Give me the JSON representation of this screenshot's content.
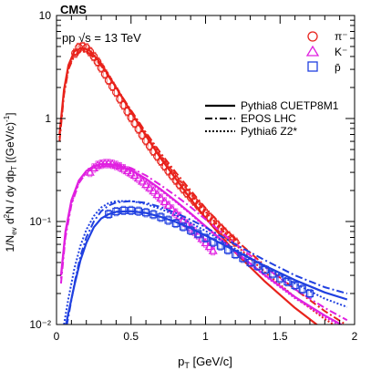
{
  "chart_data": {
    "type": "line",
    "experiment_label": "CMS",
    "energy_label": "pp √s = 13 TeV",
    "xlabel": "p_T [GeV/c]",
    "ylabel": "1/N_ev d²N / dy dp_T [(GeV/c)⁻¹]",
    "xlim": [
      0,
      2
    ],
    "ylim": [
      0.01,
      10
    ],
    "log_y": true,
    "grid": false,
    "x_ticks": [
      "0",
      "0.5",
      "1",
      "1.5",
      "2"
    ],
    "y_ticks": [
      "10⁻²",
      "10⁻¹",
      "1",
      "10"
    ],
    "legend_particles": [
      {
        "label": "π⁻",
        "marker": "circle",
        "color": "#e8221b"
      },
      {
        "label": "K⁻",
        "marker": "triangle",
        "color": "#e020e0"
      },
      {
        "label": "p̄",
        "marker": "square",
        "color": "#2040e0"
      }
    ],
    "legend_models": [
      {
        "label": "Pythia8 CUETP8M1",
        "style": "solid"
      },
      {
        "label": "EPOS LHC",
        "style": "dashdot"
      },
      {
        "label": "Pythia6 Z2*",
        "style": "dotted"
      }
    ],
    "series": [
      {
        "particle": "pion",
        "color": "#e8221b",
        "marker": "circle",
        "data": {
          "x": [
            0.125,
            0.15,
            0.175,
            0.2,
            0.225,
            0.25,
            0.275,
            0.3,
            0.325,
            0.35,
            0.375,
            0.4,
            0.425,
            0.45,
            0.475,
            0.5,
            0.525,
            0.55,
            0.575,
            0.6,
            0.625,
            0.65,
            0.675,
            0.7,
            0.725,
            0.75,
            0.775,
            0.8,
            0.825,
            0.85,
            0.875,
            0.9,
            0.925,
            0.95,
            0.975,
            1.0,
            1.025,
            1.05,
            1.075,
            1.1,
            1.125,
            1.15,
            1.175,
            1.2
          ],
          "y": [
            4.3,
            4.9,
            5.0,
            4.85,
            4.45,
            4.0,
            3.55,
            3.1,
            2.7,
            2.35,
            2.05,
            1.8,
            1.55,
            1.35,
            1.17,
            1.02,
            0.9,
            0.79,
            0.69,
            0.61,
            0.54,
            0.48,
            0.43,
            0.385,
            0.345,
            0.31,
            0.28,
            0.252,
            0.228,
            0.207,
            0.188,
            0.172,
            0.157,
            0.143,
            0.131,
            0.12,
            0.11,
            0.101,
            0.093,
            0.086,
            0.079,
            0.073,
            0.068,
            0.063
          ]
        },
        "models": {
          "pythia8": {
            "x": [
              0.02,
              0.05,
              0.08,
              0.12,
              0.17,
              0.22,
              0.3,
              0.4,
              0.5,
              0.6,
              0.7,
              0.8,
              0.9,
              1.0,
              1.2,
              1.4,
              1.6,
              1.8,
              1.95
            ],
            "y": [
              0.7,
              1.9,
              3.3,
              4.5,
              4.85,
              4.6,
              3.4,
              2.0,
              1.15,
              0.68,
              0.41,
              0.26,
              0.165,
              0.108,
              0.05,
              0.026,
              0.0145,
              0.0087,
              0.0062
            ]
          },
          "epos": {
            "x": [
              0.02,
              0.05,
              0.08,
              0.12,
              0.17,
              0.22,
              0.3,
              0.4,
              0.5,
              0.6,
              0.7,
              0.8,
              0.9,
              1.0,
              1.2,
              1.4,
              1.6,
              1.8,
              1.95
            ],
            "y": [
              0.6,
              1.7,
              3.0,
              4.1,
              4.5,
              4.3,
              3.25,
              2.0,
              1.2,
              0.73,
              0.46,
              0.3,
              0.2,
              0.135,
              0.067,
              0.037,
              0.022,
              0.0135,
              0.0098
            ]
          },
          "pythia6": {
            "x": [
              0.02,
              0.05,
              0.08,
              0.12,
              0.17,
              0.22,
              0.3,
              0.4,
              0.5,
              0.6,
              0.7,
              0.8,
              0.9,
              1.0,
              1.2,
              1.4,
              1.6,
              1.8,
              1.95
            ],
            "y": [
              0.65,
              1.8,
              3.1,
              4.2,
              4.55,
              4.35,
              3.3,
              2.0,
              1.18,
              0.71,
              0.44,
              0.28,
              0.185,
              0.124,
              0.06,
              0.032,
              0.0185,
              0.0113,
              0.0082
            ]
          }
        }
      },
      {
        "particle": "kaon",
        "color": "#e020e0",
        "marker": "triangle",
        "data": {
          "x": [
            0.225,
            0.25,
            0.275,
            0.3,
            0.325,
            0.35,
            0.375,
            0.4,
            0.425,
            0.45,
            0.475,
            0.5,
            0.525,
            0.55,
            0.575,
            0.6,
            0.625,
            0.65,
            0.675,
            0.7,
            0.725,
            0.75,
            0.775,
            0.8,
            0.825,
            0.85,
            0.875,
            0.9,
            0.925,
            0.95,
            0.975,
            1.0,
            1.025,
            1.05
          ],
          "y": [
            0.3,
            0.33,
            0.35,
            0.36,
            0.365,
            0.365,
            0.36,
            0.35,
            0.34,
            0.325,
            0.31,
            0.295,
            0.28,
            0.262,
            0.245,
            0.228,
            0.212,
            0.197,
            0.182,
            0.168,
            0.155,
            0.143,
            0.132,
            0.121,
            0.112,
            0.103,
            0.095,
            0.087,
            0.08,
            0.074,
            0.068,
            0.062,
            0.057,
            0.052
          ]
        },
        "models": {
          "pythia8": {
            "x": [
              0.03,
              0.06,
              0.1,
              0.15,
              0.2,
              0.25,
              0.3,
              0.35,
              0.4,
              0.5,
              0.6,
              0.7,
              0.8,
              0.9,
              1.0,
              1.2,
              1.4,
              1.6,
              1.8,
              1.95
            ],
            "y": [
              0.03,
              0.08,
              0.16,
              0.25,
              0.31,
              0.345,
              0.36,
              0.36,
              0.355,
              0.315,
              0.26,
              0.205,
              0.158,
              0.12,
              0.09,
              0.051,
              0.03,
              0.0185,
              0.0122,
              0.0093
            ]
          },
          "epos": {
            "x": [
              0.03,
              0.06,
              0.1,
              0.15,
              0.2,
              0.25,
              0.3,
              0.35,
              0.4,
              0.5,
              0.6,
              0.7,
              0.8,
              0.9,
              1.0,
              1.2,
              1.4,
              1.6,
              1.8,
              1.95
            ],
            "y": [
              0.025,
              0.07,
              0.145,
              0.235,
              0.3,
              0.34,
              0.36,
              0.365,
              0.36,
              0.33,
              0.28,
              0.225,
              0.178,
              0.138,
              0.105,
              0.061,
              0.036,
              0.022,
              0.0145,
              0.011
            ]
          },
          "pythia6": {
            "x": [
              0.03,
              0.06,
              0.1,
              0.15,
              0.2,
              0.25,
              0.3,
              0.35,
              0.4,
              0.5,
              0.6,
              0.7,
              0.8,
              0.9,
              1.0,
              1.2,
              1.4,
              1.6,
              1.8,
              1.95
            ],
            "y": [
              0.028,
              0.075,
              0.15,
              0.24,
              0.3,
              0.335,
              0.35,
              0.35,
              0.345,
              0.305,
              0.255,
              0.2,
              0.155,
              0.118,
              0.088,
              0.05,
              0.0295,
              0.018,
              0.0118,
              0.009
            ]
          }
        }
      },
      {
        "particle": "antiproton",
        "color": "#2040e0",
        "marker": "square",
        "data": {
          "x": [
            0.35,
            0.4,
            0.45,
            0.5,
            0.55,
            0.6,
            0.65,
            0.7,
            0.75,
            0.8,
            0.85,
            0.9,
            0.95,
            1.0,
            1.05,
            1.1,
            1.15,
            1.2,
            1.25,
            1.3,
            1.35,
            1.4,
            1.45,
            1.5,
            1.55,
            1.6,
            1.65,
            1.7
          ],
          "y": [
            0.118,
            0.125,
            0.128,
            0.128,
            0.126,
            0.122,
            0.117,
            0.11,
            0.103,
            0.096,
            0.089,
            0.082,
            0.076,
            0.069,
            0.063,
            0.058,
            0.053,
            0.048,
            0.044,
            0.04,
            0.037,
            0.034,
            0.031,
            0.028,
            0.026,
            0.024,
            0.022,
            0.02
          ]
        },
        "models": {
          "pythia8": {
            "x": [
              0.05,
              0.08,
              0.12,
              0.16,
              0.2,
              0.25,
              0.3,
              0.35,
              0.4,
              0.5,
              0.6,
              0.7,
              0.8,
              0.9,
              1.0,
              1.2,
              1.4,
              1.6,
              1.8,
              1.95
            ],
            "y": [
              0.008,
              0.013,
              0.024,
              0.042,
              0.062,
              0.088,
              0.107,
              0.118,
              0.124,
              0.126,
              0.121,
              0.111,
              0.099,
              0.086,
              0.073,
              0.052,
              0.037,
              0.027,
              0.0205,
              0.0175
            ]
          },
          "epos": {
            "x": [
              0.05,
              0.08,
              0.12,
              0.16,
              0.2,
              0.25,
              0.3,
              0.35,
              0.4,
              0.5,
              0.6,
              0.7,
              0.8,
              0.9,
              1.0,
              1.2,
              1.4,
              1.6,
              1.8,
              1.95
            ],
            "y": [
              0.007,
              0.012,
              0.025,
              0.046,
              0.07,
              0.1,
              0.126,
              0.143,
              0.153,
              0.158,
              0.152,
              0.138,
              0.121,
              0.104,
              0.088,
              0.06,
              0.042,
              0.03,
              0.023,
              0.02
            ]
          },
          "pythia6": {
            "x": [
              0.05,
              0.08,
              0.12,
              0.16,
              0.2,
              0.25,
              0.3,
              0.35,
              0.4,
              0.5,
              0.6,
              0.7,
              0.8,
              0.9,
              1.0,
              1.2,
              1.4,
              1.6,
              1.8,
              1.95
            ],
            "y": [
              0.01,
              0.018,
              0.035,
              0.058,
              0.083,
              0.113,
              0.137,
              0.151,
              0.158,
              0.158,
              0.148,
              0.132,
              0.115,
              0.097,
              0.081,
              0.054,
              0.036,
              0.025,
              0.0178,
              0.0148
            ]
          }
        }
      }
    ]
  }
}
